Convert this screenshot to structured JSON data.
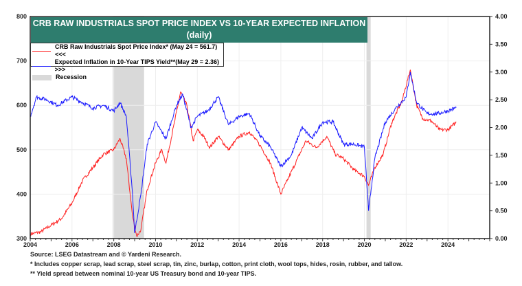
{
  "chart_data": {
    "type": "line",
    "title": "CRB RAW INDUSTRIALS SPOT PRICE INDEX VS 10-YEAR EXPECTED INFLATION",
    "subtitle": "(daily)",
    "xlim": [
      2004,
      2026
    ],
    "ylim_left": [
      300,
      800
    ],
    "ylim_right": [
      0,
      4
    ],
    "x_ticks": [
      "2004",
      "2006",
      "2008",
      "2010",
      "2012",
      "2014",
      "2016",
      "2018",
      "2020",
      "2022",
      "2024"
    ],
    "y_ticks_left": [
      "300",
      "400",
      "500",
      "600",
      "700",
      "800"
    ],
    "y_ticks_right": [
      "0.00",
      "0.50",
      "1.00",
      "1.50",
      "2.00",
      "2.50",
      "3.00",
      "3.50",
      "4.00"
    ],
    "grid": true,
    "legend_placement": "top-left",
    "recessions": [
      [
        2007.95,
        2009.45
      ],
      [
        2020.1,
        2020.3
      ]
    ],
    "recession_label": "Recession",
    "recession_color": "#d9d9d9",
    "series": [
      {
        "name": "CRB Raw Industrials Spot Price Index* (May 24 = 561.7) <<<",
        "axis": "left",
        "color": "#ff2020",
        "x": [
          2004,
          2004.5,
          2005,
          2005.5,
          2006,
          2006.5,
          2007,
          2007.5,
          2008,
          2008.3,
          2008.6,
          2008.9,
          2009.1,
          2009.3,
          2009.6,
          2010,
          2010.3,
          2010.5,
          2010.9,
          2011.2,
          2011.5,
          2011.8,
          2012,
          2012.3,
          2012.6,
          2013,
          2013.5,
          2014,
          2014.5,
          2015,
          2015.5,
          2016,
          2016.3,
          2016.8,
          2017.2,
          2017.7,
          2018.2,
          2018.6,
          2019,
          2019.5,
          2020,
          2020.2,
          2020.5,
          2020.9,
          2021.3,
          2021.8,
          2022.2,
          2022.5,
          2022.8,
          2023.2,
          2023.6,
          2024,
          2024.4
        ],
        "y": [
          310,
          315,
          330,
          345,
          380,
          430,
          460,
          490,
          500,
          525,
          480,
          350,
          305,
          320,
          410,
          470,
          500,
          470,
          560,
          630,
          600,
          520,
          545,
          530,
          505,
          530,
          500,
          530,
          540,
          510,
          470,
          400,
          430,
          480,
          520,
          505,
          530,
          490,
          480,
          455,
          440,
          420,
          460,
          490,
          560,
          610,
          680,
          600,
          570,
          565,
          545,
          545,
          562
        ]
      },
      {
        "name": "Expected Inflation in 10-Year TIPS Yield**(May 29 = 2.36) >>>",
        "axis": "right",
        "color": "#1a1aff",
        "x": [
          2004,
          2004.3,
          2004.8,
          2005.3,
          2006,
          2006.5,
          2007,
          2007.5,
          2008,
          2008.3,
          2008.6,
          2008.9,
          2009,
          2009.3,
          2009.6,
          2010,
          2010.5,
          2011,
          2011.3,
          2011.7,
          2012,
          2012.5,
          2013,
          2013.5,
          2014,
          2014.5,
          2015,
          2015.5,
          2016,
          2016.5,
          2017,
          2017.5,
          2018,
          2018.5,
          2019,
          2019.5,
          2020,
          2020.2,
          2020.5,
          2021,
          2021.5,
          2022,
          2022.2,
          2022.5,
          2023,
          2023.5,
          2024,
          2024.4
        ],
        "y": [
          2.2,
          2.55,
          2.5,
          2.4,
          2.55,
          2.45,
          2.35,
          2.4,
          2.3,
          2.45,
          2.2,
          0.8,
          0.1,
          0.8,
          1.7,
          2.1,
          1.8,
          2.4,
          2.6,
          2.0,
          2.2,
          2.3,
          2.55,
          2.05,
          2.2,
          2.25,
          1.85,
          1.65,
          1.3,
          1.5,
          2.0,
          1.8,
          2.1,
          2.1,
          1.7,
          1.7,
          1.65,
          0.5,
          1.45,
          2.1,
          2.35,
          2.55,
          3.0,
          2.45,
          2.25,
          2.25,
          2.3,
          2.36
        ]
      }
    ],
    "notes": [
      "Source: LSEG Datastream and © Yardeni Research.",
      "* Includes copper scrap, lead scrap, steel scrap, tin, zinc, burlap, cotton, print cloth, wool tops, hides, rosin, rubber, and tallow.",
      "** Yield spread between nominal 10-year US Treasury bond and 10-year TIPS."
    ]
  }
}
